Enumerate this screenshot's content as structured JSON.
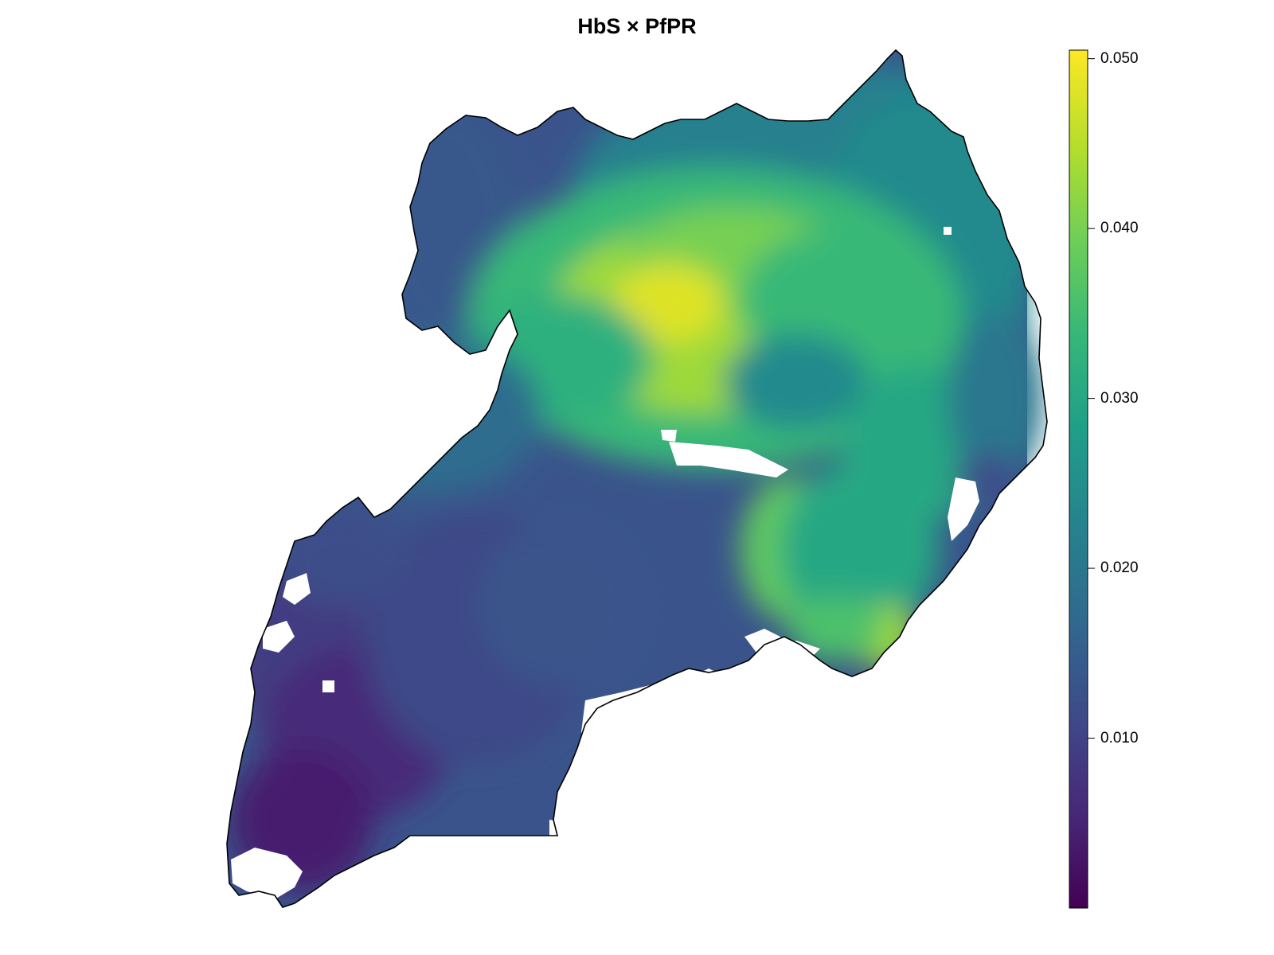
{
  "title": "HbS × PfPR",
  "legend": {
    "ticks": [
      {
        "label": "0.050",
        "value": 0.05
      },
      {
        "label": "0.040",
        "value": 0.04
      },
      {
        "label": "0.030",
        "value": 0.03
      },
      {
        "label": "0.020",
        "value": 0.02
      },
      {
        "label": "0.010",
        "value": 0.01
      }
    ],
    "min": 0.0,
    "max": 0.0505,
    "palette": "viridis",
    "colors": [
      "#440154",
      "#482878",
      "#3e4a89",
      "#31688e",
      "#26828e",
      "#1f9e89",
      "#35b779",
      "#6ece58",
      "#b5de2b",
      "#fde725"
    ]
  }
}
